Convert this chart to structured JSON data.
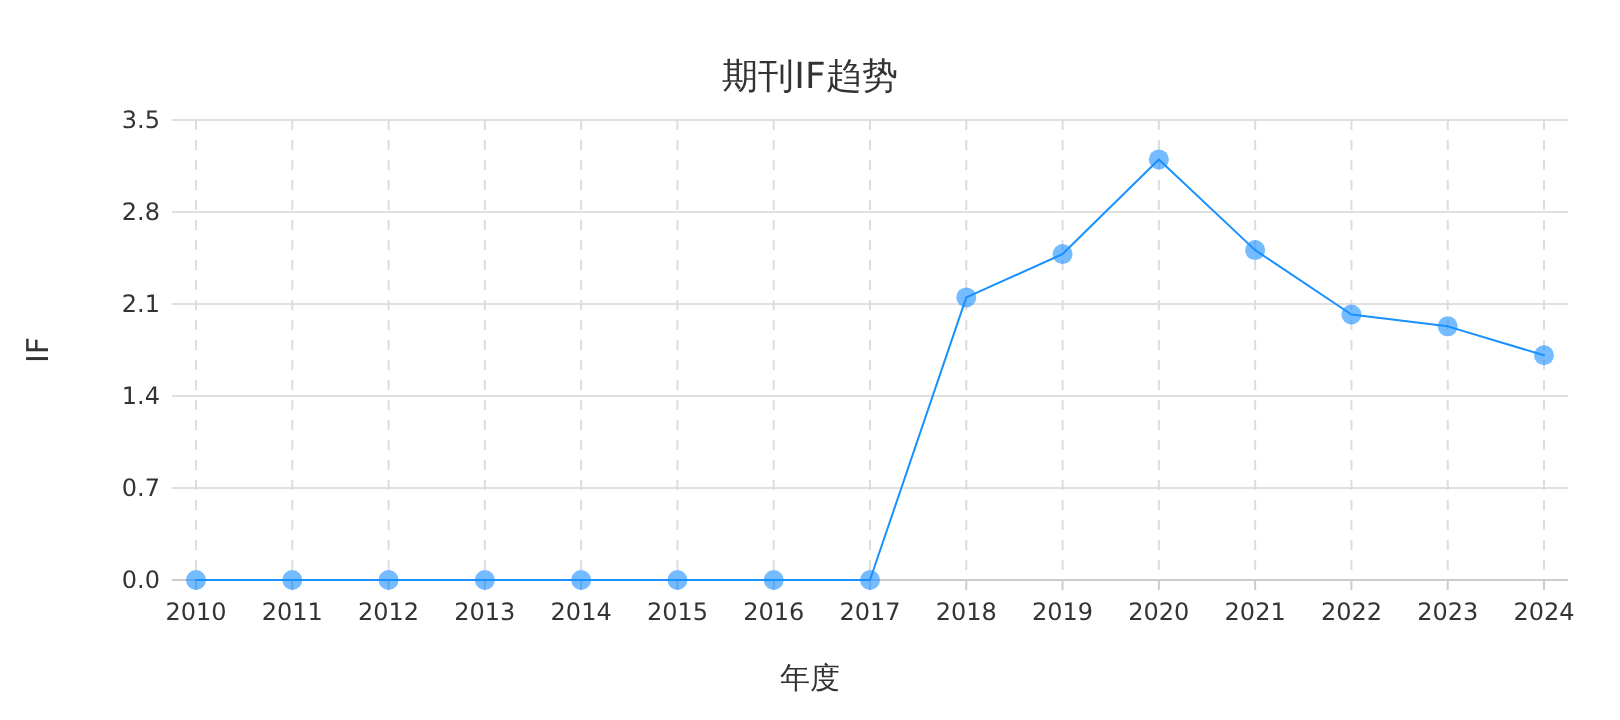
{
  "chart_data": {
    "type": "line",
    "title": "期刊IF趋势",
    "xlabel": "年度",
    "ylabel": "IF",
    "categories": [
      "2010",
      "2011",
      "2012",
      "2013",
      "2014",
      "2015",
      "2016",
      "2017",
      "2018",
      "2019",
      "2020",
      "2021",
      "2022",
      "2023",
      "2024"
    ],
    "series": [
      {
        "color": "#1890ff",
        "values": [
          0,
          0,
          0,
          0,
          0,
          0,
          0,
          0,
          2.15,
          2.48,
          3.2,
          2.51,
          2.02,
          1.93,
          1.71
        ]
      }
    ],
    "ylim": [
      0,
      3.5
    ],
    "yticks": [
      {
        "value": 0,
        "label": "0.0"
      },
      0.7,
      1.4,
      2.1,
      2.8,
      3.5
    ],
    "grid": true,
    "marker": "circle",
    "line_style": "solid"
  }
}
